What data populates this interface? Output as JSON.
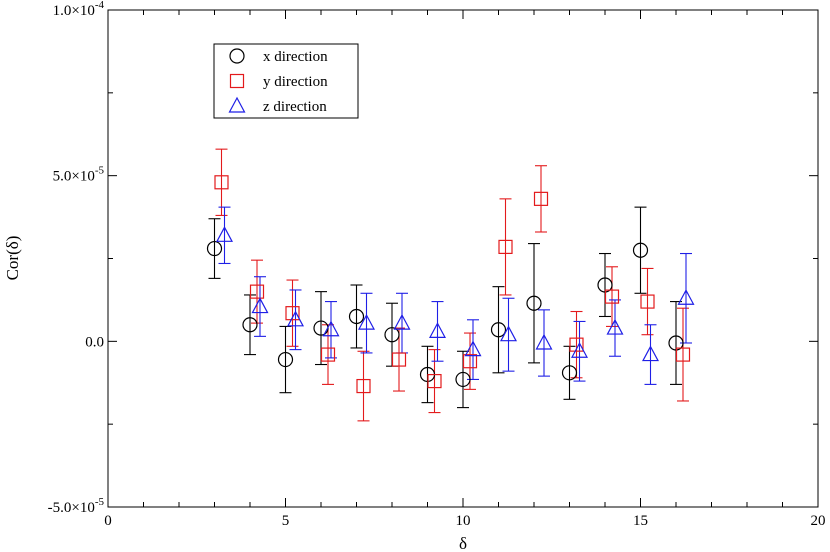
{
  "chart_data": {
    "type": "scatter",
    "title": "",
    "xlabel": "δ",
    "ylabel": "Cor(δ)",
    "xlim": [
      0,
      20
    ],
    "ylim": [
      -5e-05,
      0.0001
    ],
    "grid": false,
    "legend_position": "top-left",
    "x_ticks": [
      {
        "value": 0,
        "label": "0"
      },
      {
        "value": 5,
        "label": "5"
      },
      {
        "value": 10,
        "label": "10"
      },
      {
        "value": 15,
        "label": "15"
      },
      {
        "value": 20,
        "label": "20"
      }
    ],
    "y_ticks": [
      {
        "value": -5e-05,
        "mantissa": "-5.0×10",
        "exponent": "-5"
      },
      {
        "value": 0,
        "mantissa": "0.0",
        "exponent": ""
      },
      {
        "value": 5e-05,
        "mantissa": "5.0×10",
        "exponent": "-5"
      },
      {
        "value": 0.0001,
        "mantissa": "1.0×10",
        "exponent": "-4"
      }
    ],
    "series": [
      {
        "name": "x direction",
        "marker": "circle",
        "color": "#000000",
        "points": [
          {
            "x": 3,
            "y": 2.8e-05,
            "err": 9e-06
          },
          {
            "x": 4,
            "y": 5e-06,
            "err": 9e-06
          },
          {
            "x": 5,
            "y": -5.5e-06,
            "err": 1e-05
          },
          {
            "x": 6,
            "y": 4e-06,
            "err": 1.1e-05
          },
          {
            "x": 7,
            "y": 7.5e-06,
            "err": 9.5e-06
          },
          {
            "x": 8,
            "y": 2e-06,
            "err": 9.5e-06
          },
          {
            "x": 9,
            "y": -1e-05,
            "err": 8.5e-06
          },
          {
            "x": 10,
            "y": -1.15e-05,
            "err": 8.5e-06
          },
          {
            "x": 11,
            "y": 3.5e-06,
            "err": 1.3e-05
          },
          {
            "x": 12,
            "y": 1.15e-05,
            "err": 1.8e-05
          },
          {
            "x": 13,
            "y": -9.5e-06,
            "err": 8e-06
          },
          {
            "x": 14,
            "y": 1.7e-05,
            "err": 9.5e-06
          },
          {
            "x": 15,
            "y": 2.75e-05,
            "err": 1.3e-05
          },
          {
            "x": 16,
            "y": -5e-07,
            "err": 1.25e-05
          }
        ]
      },
      {
        "name": "y direction",
        "marker": "square",
        "color": "#e31a1c",
        "points": [
          {
            "x": 3,
            "y": 4.8e-05,
            "err": 1e-05
          },
          {
            "x": 4,
            "y": 1.5e-05,
            "err": 9.5e-06
          },
          {
            "x": 5,
            "y": 8.5e-06,
            "err": 1e-05
          },
          {
            "x": 6,
            "y": -4e-06,
            "err": 9e-06
          },
          {
            "x": 7,
            "y": -1.35e-05,
            "err": 1.05e-05
          },
          {
            "x": 8,
            "y": -5.5e-06,
            "err": 9.5e-06
          },
          {
            "x": 9,
            "y": -1.2e-05,
            "err": 9.5e-06
          },
          {
            "x": 10,
            "y": -6e-06,
            "err": 8.5e-06
          },
          {
            "x": 11,
            "y": 2.85e-05,
            "err": 1.45e-05
          },
          {
            "x": 12,
            "y": 4.3e-05,
            "err": 1e-05
          },
          {
            "x": 13,
            "y": -1e-06,
            "err": 1e-05
          },
          {
            "x": 14,
            "y": 1.35e-05,
            "err": 9e-06
          },
          {
            "x": 15,
            "y": 1.2e-05,
            "err": 1e-05
          },
          {
            "x": 16,
            "y": -4e-06,
            "err": 1.4e-05
          }
        ]
      },
      {
        "name": "z direction",
        "marker": "triangle",
        "color": "#1f1fe6",
        "points": [
          {
            "x": 3,
            "y": 3.2e-05,
            "err": 8.5e-06
          },
          {
            "x": 4,
            "y": 1.05e-05,
            "err": 9e-06
          },
          {
            "x": 5,
            "y": 6.5e-06,
            "err": 9e-06
          },
          {
            "x": 6,
            "y": 3.5e-06,
            "err": 8.5e-06
          },
          {
            "x": 7,
            "y": 5.5e-06,
            "err": 9e-06
          },
          {
            "x": 8,
            "y": 5.5e-06,
            "err": 9e-06
          },
          {
            "x": 9,
            "y": 3e-06,
            "err": 9e-06
          },
          {
            "x": 10,
            "y": -2.5e-06,
            "err": 9e-06
          },
          {
            "x": 11,
            "y": 2e-06,
            "err": 1.1e-05
          },
          {
            "x": 12,
            "y": -5e-07,
            "err": 1e-05
          },
          {
            "x": 13,
            "y": -3e-06,
            "err": 9e-06
          },
          {
            "x": 14,
            "y": 4e-06,
            "err": 8.5e-06
          },
          {
            "x": 15,
            "y": -4e-06,
            "err": 9e-06
          },
          {
            "x": 16,
            "y": 1.3e-05,
            "err": 1.35e-05
          }
        ]
      }
    ]
  }
}
